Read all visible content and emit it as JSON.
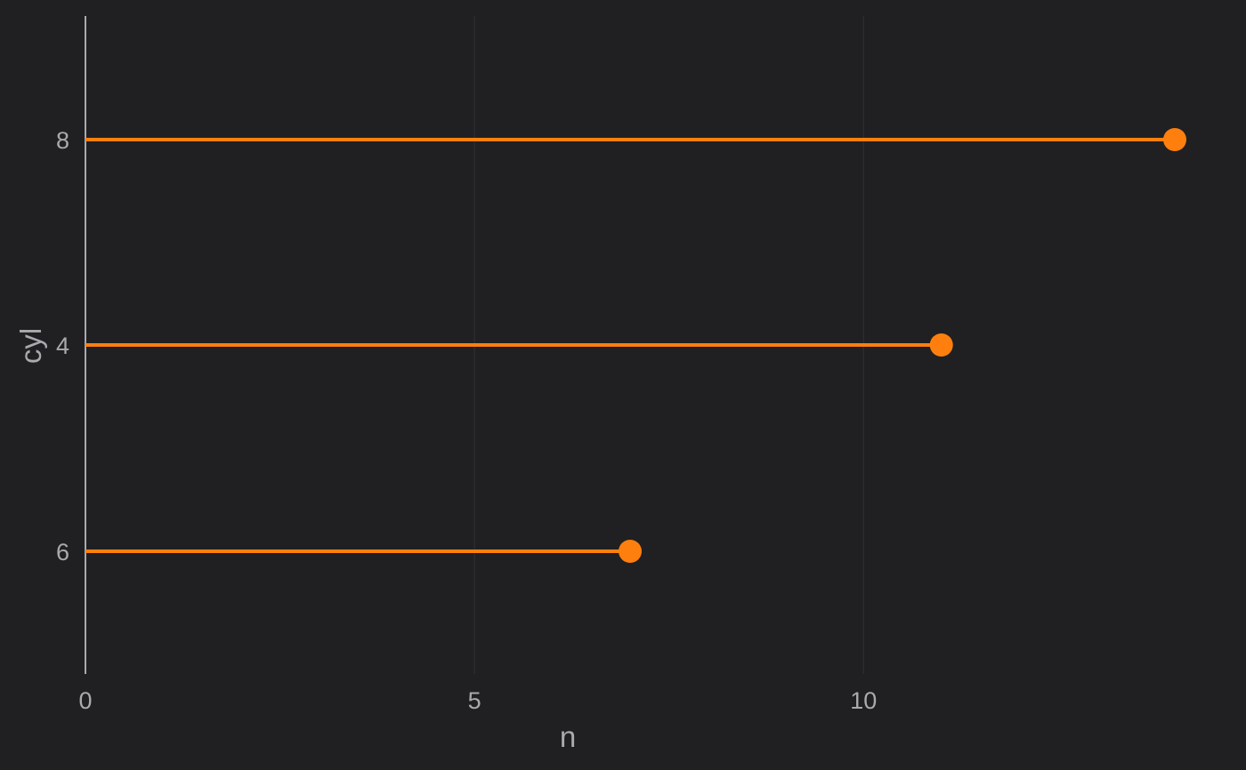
{
  "chart_data": {
    "type": "lollipop",
    "orientation": "horizontal",
    "xlabel": "n",
    "ylabel": "cyl",
    "xlim": [
      0,
      14
    ],
    "x_ticks": [
      0,
      5,
      10
    ],
    "x_tick_labels": [
      "0",
      "5",
      "10"
    ],
    "categories": [
      "6",
      "4",
      "8"
    ],
    "values": [
      7,
      11,
      14
    ],
    "grid": "vertical major lines only",
    "legend": "none",
    "colors": {
      "background": "#202022",
      "marker": "#ff7f0e",
      "axis_line": "#a9a9ae",
      "text": "#a9a9ae",
      "grid": "#2f2f33"
    }
  }
}
